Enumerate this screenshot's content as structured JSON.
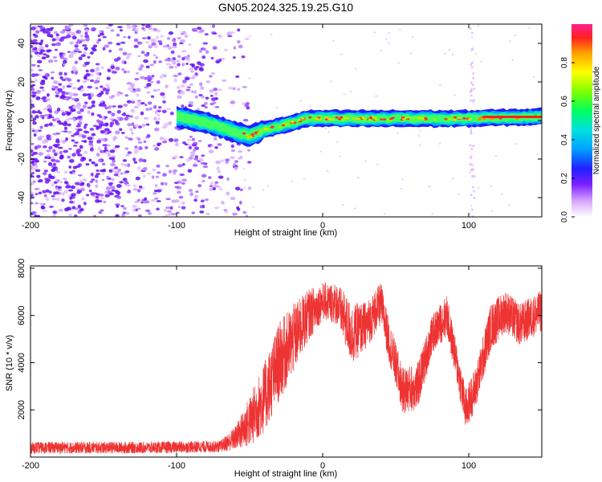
{
  "figure_title": "GN05.2024.325.19.25.G10",
  "colors": {
    "snr_line": "#ee3333",
    "axis": "#000000",
    "spectrogram_scale": [
      "#e8b8ff",
      "#b070ff",
      "#7a20ff",
      "#2020ff",
      "#00a0ff",
      "#00e0e0",
      "#00ff80",
      "#80ff00",
      "#ffff00",
      "#ffa000",
      "#ff3030",
      "#ff2080"
    ]
  },
  "chart_data": [
    {
      "type": "heatmap",
      "title": "GN05.2024.325.19.25.G10",
      "xlabel": "Height of straight line (km)",
      "ylabel": "Frequency (Hz)",
      "xlim": [
        -200,
        150
      ],
      "ylim": [
        -50,
        50
      ],
      "x_ticks": [
        -200,
        -100,
        0,
        100
      ],
      "y_ticks": [
        -40,
        -20,
        0,
        20,
        40
      ],
      "colorbar": {
        "label": "Normalized spectral amplitude",
        "range": [
          0,
          1
        ],
        "ticks": [
          "0.0",
          "0.2",
          "0.4",
          "0.6",
          "0.8"
        ]
      },
      "ridge_frequency_hz": [
        {
          "x": -100,
          "y": 2
        },
        {
          "x": -80,
          "y": -1
        },
        {
          "x": -60,
          "y": -6
        },
        {
          "x": -50,
          "y": -8
        },
        {
          "x": -40,
          "y": -5
        },
        {
          "x": -25,
          "y": -2
        },
        {
          "x": -10,
          "y": 1
        },
        {
          "x": 0,
          "y": 1
        },
        {
          "x": 50,
          "y": 1
        },
        {
          "x": 100,
          "y": 1
        },
        {
          "x": 150,
          "y": 2
        }
      ],
      "noise_region_x": [
        -200,
        -60
      ]
    },
    {
      "type": "line",
      "xlabel": "Height of straight line (km)",
      "ylabel": "SNR (10 * v/v)",
      "xlim": [
        -200,
        150
      ],
      "ylim": [
        0,
        8100
      ],
      "x_ticks": [
        -200,
        -100,
        0,
        100
      ],
      "y_ticks": [
        2000,
        4000,
        6000,
        8000
      ],
      "series": [
        {
          "envelope": [
            {
              "x": -200,
              "center": 400,
              "spread": 250
            },
            {
              "x": -120,
              "center": 400,
              "spread": 250
            },
            {
              "x": -70,
              "center": 450,
              "spread": 250
            },
            {
              "x": -60,
              "center": 800,
              "spread": 500
            },
            {
              "x": -50,
              "center": 1500,
              "spread": 1100
            },
            {
              "x": -40,
              "center": 2500,
              "spread": 1500
            },
            {
              "x": -30,
              "center": 4000,
              "spread": 1700
            },
            {
              "x": -20,
              "center": 5000,
              "spread": 1500
            },
            {
              "x": -10,
              "center": 6000,
              "spread": 1100
            },
            {
              "x": 0,
              "center": 6600,
              "spread": 800
            },
            {
              "x": 10,
              "center": 6500,
              "spread": 900
            },
            {
              "x": 20,
              "center": 5200,
              "spread": 1300
            },
            {
              "x": 30,
              "center": 5600,
              "spread": 1000
            },
            {
              "x": 40,
              "center": 6500,
              "spread": 900
            },
            {
              "x": 45,
              "center": 5000,
              "spread": 900
            },
            {
              "x": 55,
              "center": 2800,
              "spread": 1000
            },
            {
              "x": 65,
              "center": 3000,
              "spread": 1000
            },
            {
              "x": 75,
              "center": 5200,
              "spread": 800
            },
            {
              "x": 85,
              "center": 6000,
              "spread": 900
            },
            {
              "x": 90,
              "center": 4500,
              "spread": 800
            },
            {
              "x": 98,
              "center": 2000,
              "spread": 900
            },
            {
              "x": 105,
              "center": 3000,
              "spread": 900
            },
            {
              "x": 115,
              "center": 5500,
              "spread": 1000
            },
            {
              "x": 125,
              "center": 6200,
              "spread": 900
            },
            {
              "x": 135,
              "center": 5600,
              "spread": 900
            },
            {
              "x": 150,
              "center": 6200,
              "spread": 900
            }
          ]
        }
      ]
    }
  ]
}
